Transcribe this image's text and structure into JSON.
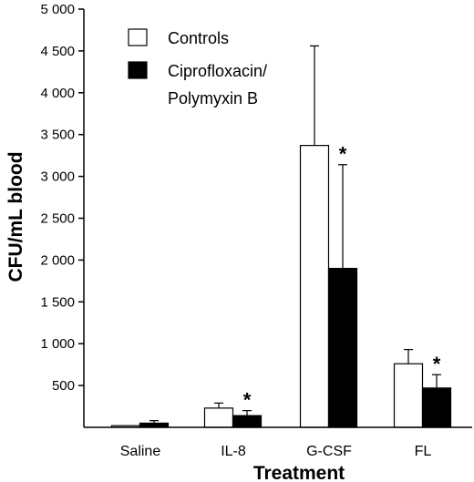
{
  "chart_data": {
    "type": "bar",
    "xlabel": "Treatment",
    "ylabel": "CFU/mL blood",
    "ylim": [
      0,
      5000
    ],
    "yticks": [
      {
        "value": 500,
        "label": "500"
      },
      {
        "value": 1000,
        "label": "1 000"
      },
      {
        "value": 1500,
        "label": "1 500"
      },
      {
        "value": 2000,
        "label": "2 000"
      },
      {
        "value": 2500,
        "label": "2 500"
      },
      {
        "value": 3000,
        "label": "3 000"
      },
      {
        "value": 3500,
        "label": "3 500"
      },
      {
        "value": 4000,
        "label": "4 000"
      },
      {
        "value": 4500,
        "label": "4 500"
      },
      {
        "value": 5000,
        "label": "5 000"
      }
    ],
    "categories": [
      "Saline",
      "IL-8",
      "G-CSF",
      "FL"
    ],
    "series": [
      {
        "name": "Controls",
        "fill": "#ffffff",
        "values": [
          20,
          230,
          3370,
          760
        ],
        "errors": [
          0,
          60,
          1190,
          170
        ],
        "significant": [
          false,
          false,
          false,
          false
        ]
      },
      {
        "name": "Ciprofloxacin/ Polymyxin B",
        "name_lines": [
          "Ciprofloxacin/",
          "Polymyxin B"
        ],
        "fill": "#000000",
        "values": [
          50,
          140,
          1900,
          470
        ],
        "errors": [
          30,
          60,
          1240,
          160
        ],
        "significant": [
          false,
          true,
          true,
          true
        ]
      }
    ],
    "significance_marker": "*",
    "legend_position": "top-left"
  }
}
